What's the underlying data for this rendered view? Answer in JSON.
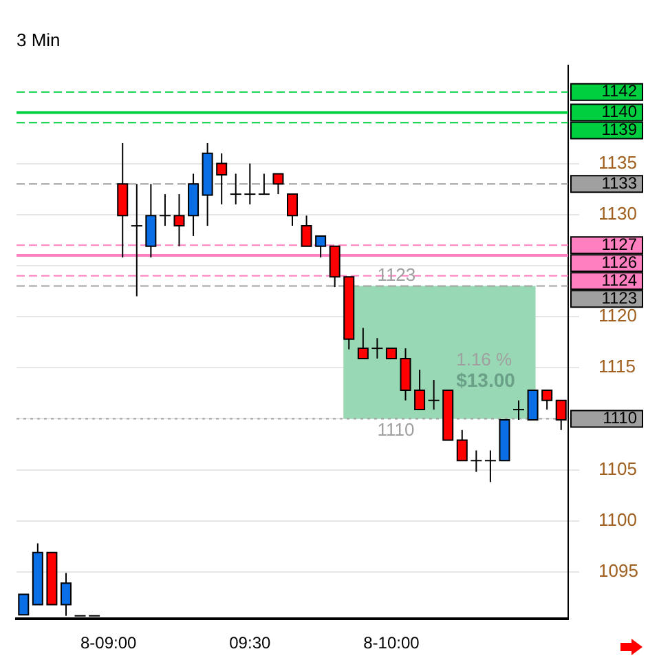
{
  "chart_data": {
    "type": "candlestick",
    "title": "3 Min",
    "categories": [
      null,
      null,
      null,
      null,
      null,
      null,
      "8-09:00",
      null,
      null,
      null,
      null,
      null,
      null,
      null,
      null,
      null,
      "09:30",
      null,
      null,
      null,
      null,
      null,
      null,
      null,
      null,
      null,
      "8-10:00",
      null,
      null,
      null,
      null,
      null,
      null,
      null,
      null,
      null,
      null,
      null,
      null
    ],
    "ohlc": [
      [
        1090.8,
        1092.8,
        1090.8,
        1092.8
      ],
      [
        1091.8,
        1097.8,
        1091.8,
        1096.9
      ],
      [
        1096.9,
        1096.9,
        1091.8,
        1091.8
      ],
      [
        1091.8,
        1094.9,
        1090.7,
        1093.9
      ],
      [
        1090.7,
        1090.7,
        1090.7,
        1090.7
      ],
      [
        1090.7,
        1090.7,
        1090.7,
        1090.7
      ],
      null,
      [
        1133.0,
        1137.0,
        1125.8,
        1129.9
      ],
      [
        1128.9,
        1133.0,
        1122.0,
        1128.9
      ],
      [
        1126.9,
        1133.0,
        1125.8,
        1129.9
      ],
      [
        1129.9,
        1132.0,
        1128.9,
        1129.9
      ],
      [
        1129.9,
        1132.0,
        1126.9,
        1128.9
      ],
      [
        1129.9,
        1134.0,
        1127.9,
        1133.0
      ],
      [
        1131.9,
        1137.0,
        1128.9,
        1136.0
      ],
      [
        1135.0,
        1136.0,
        1131.0,
        1133.9
      ],
      [
        1132.0,
        1134.0,
        1131.0,
        1132.0
      ],
      [
        1132.0,
        1135.0,
        1131.0,
        1132.0
      ],
      [
        1132.0,
        1134.0,
        1132.0,
        1132.0
      ],
      [
        1134.0,
        1134.0,
        1132.0,
        1133.0
      ],
      [
        1132.0,
        1132.0,
        1128.9,
        1129.9
      ],
      [
        1128.9,
        1129.9,
        1126.9,
        1126.9
      ],
      [
        1126.9,
        1127.9,
        1125.8,
        1127.9
      ],
      [
        1126.9,
        1126.9,
        1122.9,
        1123.9
      ],
      [
        1123.9,
        1123.9,
        1116.8,
        1117.8
      ],
      [
        1116.9,
        1118.9,
        1115.9,
        1115.9
      ],
      [
        1116.9,
        1117.9,
        1115.9,
        1116.9
      ],
      [
        1116.9,
        1116.9,
        1115.9,
        1115.9
      ],
      [
        1115.9,
        1116.9,
        1111.8,
        1112.8
      ],
      [
        1112.8,
        1114.8,
        1110.9,
        1110.9
      ],
      [
        1111.8,
        1113.8,
        1110.9,
        1111.8
      ],
      [
        1112.8,
        1112.8,
        1107.9,
        1107.9
      ],
      [
        1107.9,
        1108.9,
        1105.9,
        1105.9
      ],
      [
        1105.9,
        1106.9,
        1104.8,
        1105.9
      ],
      [
        1105.9,
        1106.9,
        1103.8,
        1105.9
      ],
      [
        1105.9,
        1109.9,
        1105.9,
        1109.9
      ],
      [
        1110.9,
        1111.8,
        1109.9,
        1110.9
      ],
      [
        1109.9,
        1112.8,
        1109.9,
        1112.8
      ],
      [
        1112.8,
        1112.8,
        1110.9,
        1111.8
      ],
      [
        1111.8,
        1111.8,
        1108.9,
        1109.9
      ]
    ],
    "colors": [
      "#0a6ee6",
      "#0a6ee6",
      "#ff0000",
      "#0a6ee6",
      "#000000",
      "#000000",
      null,
      "#ff0000",
      "#000000",
      "#0a6ee6",
      "#000000",
      "#ff0000",
      "#0a6ee6",
      "#0a6ee6",
      "#ff0000",
      "#000000",
      "#000000",
      "#000000",
      "#ff0000",
      "#ff0000",
      "#ff0000",
      "#0a6ee6",
      "#ff0000",
      "#ff0000",
      "#ff0000",
      "#000000",
      "#ff0000",
      "#ff0000",
      "#ff0000",
      "#000000",
      "#ff0000",
      "#ff0000",
      "#000000",
      "#000000",
      "#0a6ee6",
      "#000000",
      "#0a6ee6",
      "#ff0000",
      "#ff0000"
    ],
    "ylim": [
      1090.4,
      1144.6
    ],
    "yticks": [
      1095,
      1100,
      1105,
      1110,
      1115,
      1120,
      {
        "value": 1125,
        "label": null
      },
      1130,
      1135
    ],
    "grid": "y",
    "ref_lines": [
      {
        "axis": "y",
        "value": 1142,
        "label": "1142",
        "color": "#00d040",
        "line_style": "dashed"
      },
      {
        "axis": "y",
        "value": 1140,
        "label": "1140",
        "color": "#00d040",
        "line_style": "solid"
      },
      {
        "axis": "y",
        "value": 1139,
        "label": "1139",
        "color": "#00d040",
        "line_style": "dashed"
      },
      {
        "axis": "y",
        "value": 1133,
        "label": "1133",
        "color": "#a0a0a0",
        "line_style": "dashed"
      },
      {
        "axis": "y",
        "value": 1127,
        "label": "1127",
        "color": "#ff80c0",
        "line_style": "dashed"
      },
      {
        "axis": "y",
        "value": 1126,
        "label": "1126",
        "color": "#ff80c0",
        "line_style": "solid"
      },
      {
        "axis": "y",
        "value": 1124,
        "label": "1124",
        "color": "#ff80c0",
        "line_style": "dashed"
      },
      {
        "axis": "y",
        "value": 1123,
        "label": "1123",
        "color": "#a0a0a0",
        "line_style": "dashed"
      },
      {
        "axis": "y",
        "value": 1110,
        "label": "1110",
        "color": "#a0a0a0",
        "line_style": "dotted"
      }
    ],
    "bands": [
      {
        "axis": "y",
        "from": 1110,
        "to": 1123,
        "color": "#99d8b4"
      }
    ],
    "annotations": [
      "1123",
      "1110",
      "$13.00",
      "1.16 %"
    ]
  }
}
